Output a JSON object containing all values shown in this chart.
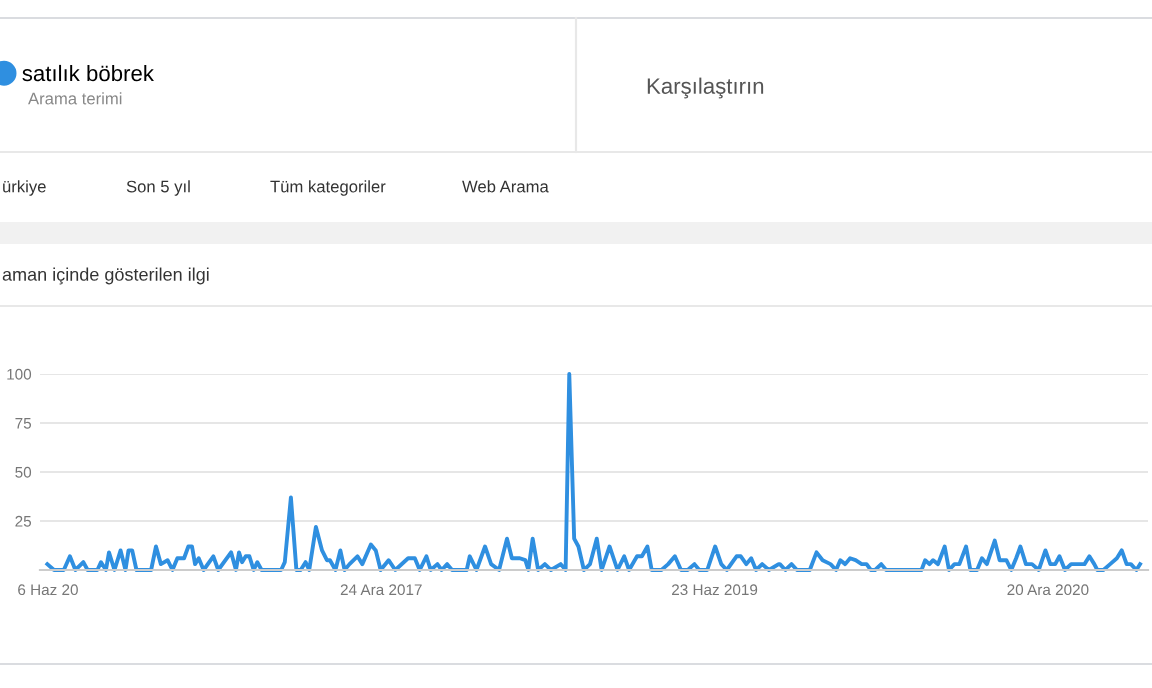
{
  "chart_data": {
    "type": "line",
    "title": "aman içinde gösterilen ilgi",
    "annotations": [
      "Arama terimi",
      "Karşılaştırın",
      "ürkiye",
      "Son 5 yıl",
      "Tüm kategoriler",
      "Web Arama"
    ],
    "legend": "top left",
    "grid": "y",
    "marker": "none",
    "line_style": "solid",
    "xlim": [
      "2016-06-13",
      "2021-06-02"
    ],
    "xticks": [
      {
        "value": "2016-06-26",
        "label": "6 Haz 20"
      },
      {
        "value": "2017-12-24",
        "label": "24 Ara 2017"
      },
      {
        "value": "2019-06-23",
        "label": "23 Haz 2019"
      },
      {
        "value": "2020-12-20",
        "label": "20 Ara 2020"
      }
    ],
    "ylim": [
      0,
      100
    ],
    "yticks": [
      25,
      50,
      75,
      100
    ],
    "series": [
      {
        "name": "satılık böbrek",
        "color": "#2f8fe0",
        "x": [
          "2016-06-25",
          "2016-07-06",
          "2016-07-22",
          "2016-08-01",
          "2016-08-10",
          "2016-08-23",
          "2016-08-30",
          "2016-09-15",
          "2016-09-21",
          "2016-09-29",
          "2016-10-04",
          "2016-10-13",
          "2016-10-23",
          "2016-10-31",
          "2016-11-05",
          "2016-11-11",
          "2016-11-18",
          "2016-12-12",
          "2016-12-20",
          "2016-12-28",
          "2017-01-08",
          "2017-01-16",
          "2017-01-24",
          "2017-02-04",
          "2017-02-11",
          "2017-02-17",
          "2017-02-22",
          "2017-02-28",
          "2017-03-08",
          "2017-03-24",
          "2017-04-01",
          "2017-04-22",
          "2017-04-30",
          "2017-05-05",
          "2017-05-10",
          "2017-05-16",
          "2017-05-22",
          "2017-05-29",
          "2017-06-04",
          "2017-06-11",
          "2017-07-13",
          "2017-07-19",
          "2017-07-29",
          "2017-08-07",
          "2017-08-14",
          "2017-08-22",
          "2017-08-28",
          "2017-09-08",
          "2017-09-18",
          "2017-09-26",
          "2017-10-01",
          "2017-10-10",
          "2017-10-18",
          "2017-10-25",
          "2017-11-02",
          "2017-11-15",
          "2017-11-23",
          "2017-12-07",
          "2017-12-15",
          "2017-12-23",
          "2018-01-05",
          "2018-01-16",
          "2018-02-06",
          "2018-02-08",
          "2018-02-17",
          "2018-02-25",
          "2018-03-08",
          "2018-03-15",
          "2018-03-26",
          "2018-04-02",
          "2018-04-11",
          "2018-04-19",
          "2018-05-13",
          "2018-05-18",
          "2018-05-29",
          "2018-06-12",
          "2018-06-22",
          "2018-07-05",
          "2018-07-18",
          "2018-07-26",
          "2018-08-08",
          "2018-08-17",
          "2018-08-22",
          "2018-08-29",
          "2018-09-07",
          "2018-09-18",
          "2018-09-28",
          "2018-10-14",
          "2018-10-22",
          "2018-10-28",
          "2018-11-05",
          "2018-11-12",
          "2018-11-21",
          "2018-12-01",
          "2018-12-12",
          "2018-12-20",
          "2019-01-02",
          "2019-01-15",
          "2019-01-26",
          "2019-02-03",
          "2019-02-16",
          "2019-02-24",
          "2019-03-05",
          "2019-03-12",
          "2019-03-28",
          "2019-04-08",
          "2019-04-19",
          "2019-04-29",
          "2019-05-10",
          "2019-05-21",
          "2019-05-29",
          "2019-06-11",
          "2019-06-24",
          "2019-07-04",
          "2019-07-13",
          "2019-07-29",
          "2019-08-05",
          "2019-08-14",
          "2019-08-22",
          "2019-08-30",
          "2019-09-09",
          "2019-09-20",
          "2019-10-06",
          "2019-10-08",
          "2019-10-17",
          "2019-10-27",
          "2019-11-05",
          "2019-11-26",
          "2019-12-07",
          "2019-12-17",
          "2019-12-30",
          "2020-01-08",
          "2020-01-15",
          "2020-01-23",
          "2020-01-31",
          "2020-02-09",
          "2020-02-19",
          "2020-02-27",
          "2020-03-05",
          "2020-03-12",
          "2020-03-22",
          "2020-03-30",
          "2020-05-27",
          "2020-06-02",
          "2020-06-09",
          "2020-06-15",
          "2020-06-23",
          "2020-07-04",
          "2020-07-11",
          "2020-07-20",
          "2020-07-28",
          "2020-08-08",
          "2020-08-15",
          "2020-08-26",
          "2020-09-03",
          "2020-09-11",
          "2020-09-24",
          "2020-10-02",
          "2020-10-13",
          "2020-10-21",
          "2020-10-29",
          "2020-11-05",
          "2020-11-14",
          "2020-11-24",
          "2020-12-05",
          "2020-12-16",
          "2020-12-24",
          "2021-01-01",
          "2021-01-08",
          "2021-01-17",
          "2021-01-27",
          "2021-02-07",
          "2021-02-18",
          "2021-02-26",
          "2021-03-06",
          "2021-03-11",
          "2021-03-21",
          "2021-04-01",
          "2021-04-12",
          "2021-04-20",
          "2021-04-28",
          "2021-05-05",
          "2021-05-14",
          "2021-05-20"
        ],
        "values": [
          3,
          0,
          0,
          7,
          0,
          4,
          0,
          0,
          4,
          0,
          9,
          0,
          10,
          0,
          10,
          10,
          0,
          0,
          12,
          3,
          5,
          0,
          6,
          6,
          12,
          12,
          3,
          6,
          0,
          7,
          0,
          9,
          0,
          9,
          4,
          7,
          7,
          0,
          4,
          0,
          0,
          4,
          37,
          0,
          0,
          4,
          0,
          22,
          10,
          5,
          5,
          0,
          10,
          0,
          3,
          7,
          3,
          13,
          10,
          0,
          5,
          0,
          6,
          6,
          6,
          0,
          7,
          0,
          3,
          0,
          3,
          0,
          0,
          7,
          0,
          12,
          3,
          0,
          16,
          6,
          6,
          5,
          0,
          16,
          0,
          3,
          0,
          3,
          0,
          100,
          16,
          12,
          0,
          3,
          16,
          0,
          12,
          0,
          7,
          0,
          7,
          7,
          12,
          0,
          0,
          3,
          7,
          0,
          0,
          3,
          0,
          0,
          12,
          3,
          0,
          7,
          7,
          3,
          6,
          0,
          3,
          0,
          3,
          3,
          0,
          3,
          0,
          0,
          9,
          5,
          3,
          0,
          5,
          3,
          6,
          5,
          3,
          3,
          0,
          0,
          3,
          0,
          0,
          5,
          3,
          5,
          3,
          12,
          0,
          3,
          3,
          12,
          0,
          0,
          6,
          3,
          15,
          5,
          5,
          0,
          6,
          12,
          3,
          3,
          0,
          10,
          3,
          3,
          7,
          0,
          3,
          3,
          3,
          7,
          3,
          0,
          0,
          3,
          6,
          10,
          3,
          3,
          0,
          3
        ]
      }
    ]
  }
}
